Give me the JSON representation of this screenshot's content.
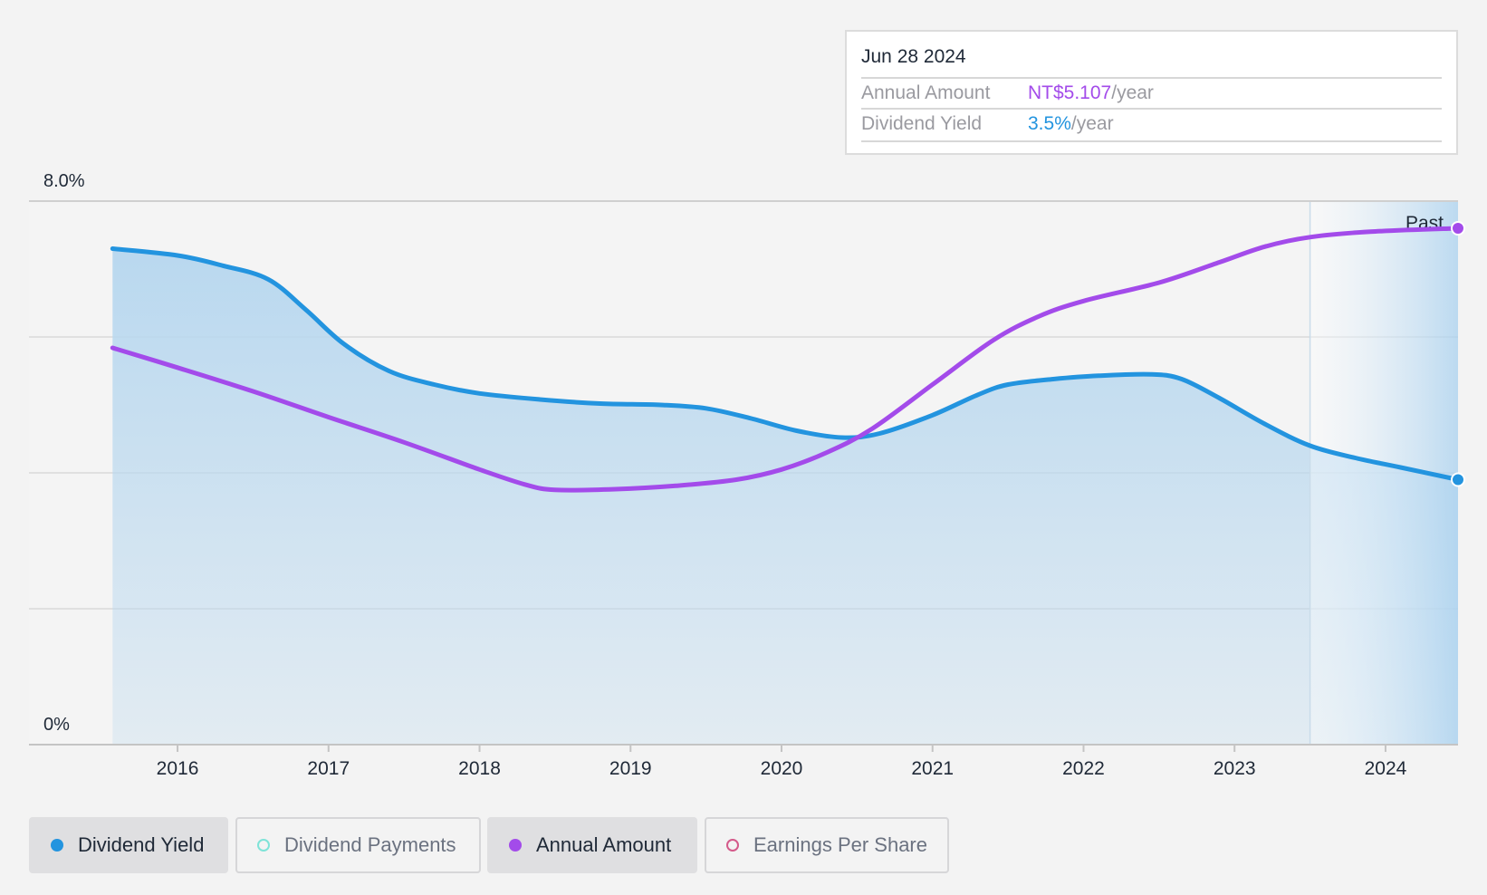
{
  "tooltip": {
    "date": "Jun 28 2024",
    "rows": [
      {
        "label": "Annual Amount",
        "value": "NT$5.107",
        "unit": "/year",
        "color": "#a34bea"
      },
      {
        "label": "Dividend Yield",
        "value": "3.5%",
        "unit": "/year",
        "color": "#2394df"
      }
    ]
  },
  "legend": {
    "items": [
      {
        "label": "Dividend Yield",
        "color": "#2394df",
        "active": true
      },
      {
        "label": "Dividend Payments",
        "color": "#7fe3d8",
        "active": false
      },
      {
        "label": "Annual Amount",
        "color": "#a34bea",
        "active": true
      },
      {
        "label": "Earnings Per Share",
        "color": "#d45a8a",
        "active": false
      }
    ]
  },
  "colors": {
    "yield": "#2394df",
    "amount": "#a34bea",
    "area": "#b9d8ef",
    "grid": "#d9d9d9"
  },
  "chart_data": {
    "type": "line",
    "x_ticks": [
      2016,
      2017,
      2018,
      2019,
      2020,
      2021,
      2022,
      2023,
      2024
    ],
    "xlim": [
      2015.4,
      2024.48
    ],
    "y_ticks_labeled": [
      {
        "value": 8.0,
        "label": "8.0%"
      },
      {
        "value": 0,
        "label": "0%"
      }
    ],
    "ylim": [
      0,
      8.0
    ],
    "y_gridlines": [
      0,
      2,
      4,
      6,
      8
    ],
    "past_label": "Past",
    "past_start": 2023.5,
    "series": [
      {
        "name": "Dividend Yield",
        "unit": "%",
        "filled": true,
        "points": [
          [
            2015.57,
            7.3
          ],
          [
            2016.0,
            7.2
          ],
          [
            2016.3,
            7.05
          ],
          [
            2016.6,
            6.85
          ],
          [
            2016.85,
            6.4
          ],
          [
            2017.1,
            5.9
          ],
          [
            2017.4,
            5.5
          ],
          [
            2017.7,
            5.3
          ],
          [
            2018.0,
            5.17
          ],
          [
            2018.4,
            5.08
          ],
          [
            2018.8,
            5.02
          ],
          [
            2019.2,
            5.0
          ],
          [
            2019.5,
            4.95
          ],
          [
            2019.8,
            4.8
          ],
          [
            2020.1,
            4.62
          ],
          [
            2020.4,
            4.52
          ],
          [
            2020.65,
            4.58
          ],
          [
            2021.0,
            4.85
          ],
          [
            2021.3,
            5.15
          ],
          [
            2021.5,
            5.3
          ],
          [
            2021.8,
            5.38
          ],
          [
            2022.1,
            5.43
          ],
          [
            2022.45,
            5.45
          ],
          [
            2022.65,
            5.38
          ],
          [
            2022.9,
            5.1
          ],
          [
            2023.2,
            4.72
          ],
          [
            2023.5,
            4.4
          ],
          [
            2023.8,
            4.22
          ],
          [
            2024.1,
            4.08
          ],
          [
            2024.48,
            3.9
          ]
        ]
      },
      {
        "name": "Annual Amount",
        "unit": "NT$",
        "filled": false,
        "points": [
          [
            2015.57,
            5.84
          ],
          [
            2016.0,
            5.55
          ],
          [
            2016.5,
            5.2
          ],
          [
            2017.0,
            4.82
          ],
          [
            2017.5,
            4.45
          ],
          [
            2018.0,
            4.05
          ],
          [
            2018.3,
            3.83
          ],
          [
            2018.5,
            3.75
          ],
          [
            2018.9,
            3.76
          ],
          [
            2019.3,
            3.81
          ],
          [
            2019.7,
            3.9
          ],
          [
            2020.0,
            4.05
          ],
          [
            2020.3,
            4.3
          ],
          [
            2020.6,
            4.65
          ],
          [
            2021.0,
            5.3
          ],
          [
            2021.4,
            5.95
          ],
          [
            2021.7,
            6.3
          ],
          [
            2022.0,
            6.53
          ],
          [
            2022.5,
            6.8
          ],
          [
            2022.9,
            7.1
          ],
          [
            2023.2,
            7.33
          ],
          [
            2023.5,
            7.47
          ],
          [
            2023.9,
            7.55
          ],
          [
            2024.48,
            7.6
          ]
        ]
      }
    ]
  }
}
